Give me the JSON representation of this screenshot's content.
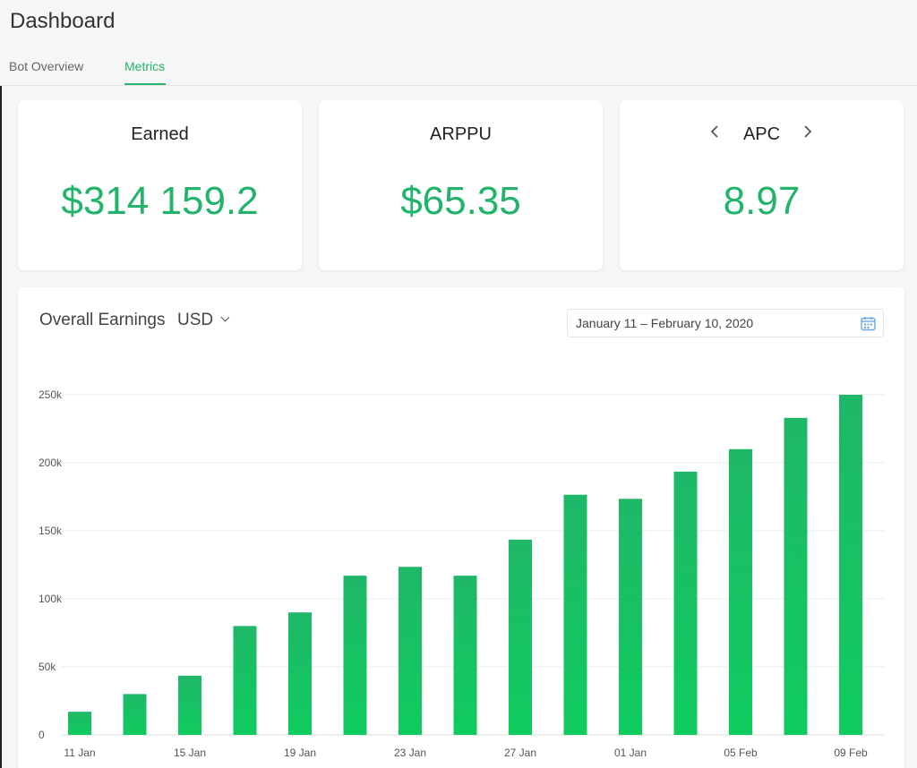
{
  "header": {
    "title": "Dashboard",
    "tabs": [
      {
        "label": "Bot Overview",
        "active": false
      },
      {
        "label": "Metrics",
        "active": true
      }
    ]
  },
  "cards": [
    {
      "label": "Earned",
      "value": "$314 159.2"
    },
    {
      "label": "ARPPU",
      "value": "$65.35"
    },
    {
      "label": "APC",
      "value": "8.97",
      "prev_icon": "chevron-left-icon",
      "next_icon": "chevron-right-icon"
    }
  ],
  "earnings": {
    "title": "Overall Earnings",
    "currency": "USD",
    "date_range": "January 11 – February 10, 2020",
    "calendar_icon": "calendar-icon"
  },
  "colors": {
    "accent": "#27b46b",
    "bar_top": "#1fb868",
    "bar_bottom": "#0fcc5e"
  },
  "chart_data": {
    "type": "bar",
    "y_ticks": [
      "0",
      "50k",
      "100k",
      "150k",
      "200k",
      "250k"
    ],
    "x_tick_labels": [
      "11 Jan",
      "15 Jan",
      "19 Jan",
      "23 Jan",
      "27 Jan",
      "01 Jan",
      "05 Feb",
      "09 Feb"
    ],
    "values": [
      17000,
      30000,
      43500,
      80000,
      90000,
      117000,
      123500,
      117000,
      143500,
      176500,
      173500,
      193500,
      210000,
      233000,
      250000
    ],
    "ylim": [
      0,
      250000
    ],
    "grid": true
  }
}
